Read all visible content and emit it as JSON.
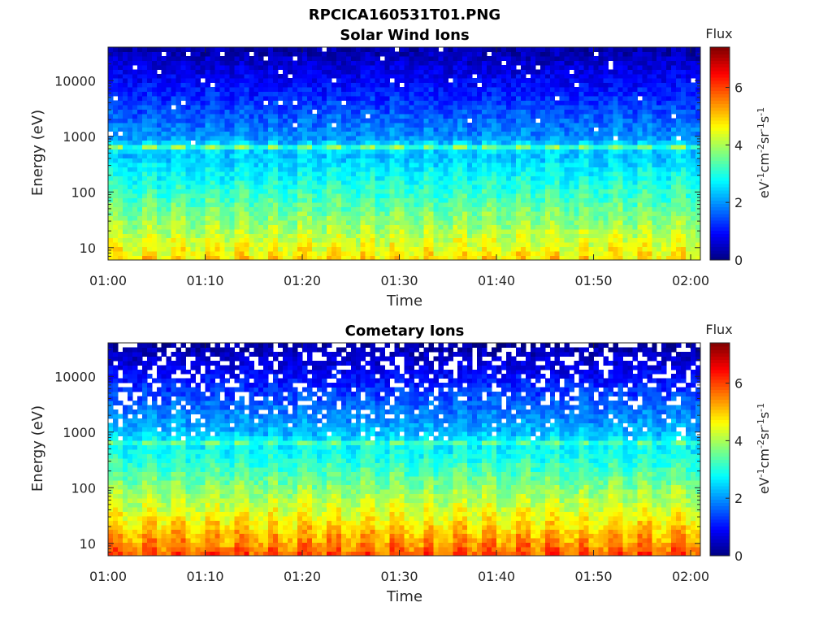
{
  "figure": {
    "title": "RPCICA160531T01.PNG"
  },
  "chart_data": [
    {
      "type": "heatmap",
      "title": "Solar Wind Ions",
      "xlabel": "Time",
      "ylabel": "Energy (eV)",
      "x_ticks": [
        "01:00",
        "01:10",
        "01:20",
        "01:30",
        "01:40",
        "01:50",
        "02:00"
      ],
      "y_scale": "log",
      "y_ticks": [
        "10",
        "100",
        "1000",
        "10000"
      ],
      "y_tick_values": [
        10,
        100,
        1000,
        10000
      ],
      "ylim": [
        6,
        40000
      ],
      "xlim_minutes": [
        0,
        61
      ],
      "colorbar": {
        "title": "Flux",
        "label": "eV-1cm-2sr-1s-1",
        "ticks": [
          "0",
          "2",
          "4",
          "6"
        ],
        "range": [
          0,
          7.4
        ],
        "colormap": "jet"
      },
      "features": {
        "scan_period_minutes": 3.2,
        "peak_energy_eV": 650,
        "low_energy_flux_max": 5.2,
        "high_energy_flux_min": 0.3,
        "missing_data_fraction": 0.03
      }
    },
    {
      "type": "heatmap",
      "title": "Cometary Ions",
      "xlabel": "Time",
      "ylabel": "Energy (eV)",
      "x_ticks": [
        "01:00",
        "01:10",
        "01:20",
        "01:30",
        "01:40",
        "01:50",
        "02:00"
      ],
      "y_scale": "log",
      "y_ticks": [
        "10",
        "100",
        "1000",
        "10000"
      ],
      "y_tick_values": [
        10,
        100,
        1000,
        10000
      ],
      "ylim": [
        6,
        40000
      ],
      "xlim_minutes": [
        0,
        61
      ],
      "colorbar": {
        "title": "Flux",
        "label": "eV-1cm-2sr-1s-1",
        "ticks": [
          "0",
          "2",
          "4",
          "6"
        ],
        "range": [
          0,
          7.4
        ],
        "colormap": "jet"
      },
      "features": {
        "scan_period_minutes": 3.2,
        "peak_energy_eV": 650,
        "low_energy_flux_max": 6.3,
        "high_energy_flux_min": 0.2,
        "missing_data_fraction": 0.25
      }
    }
  ]
}
